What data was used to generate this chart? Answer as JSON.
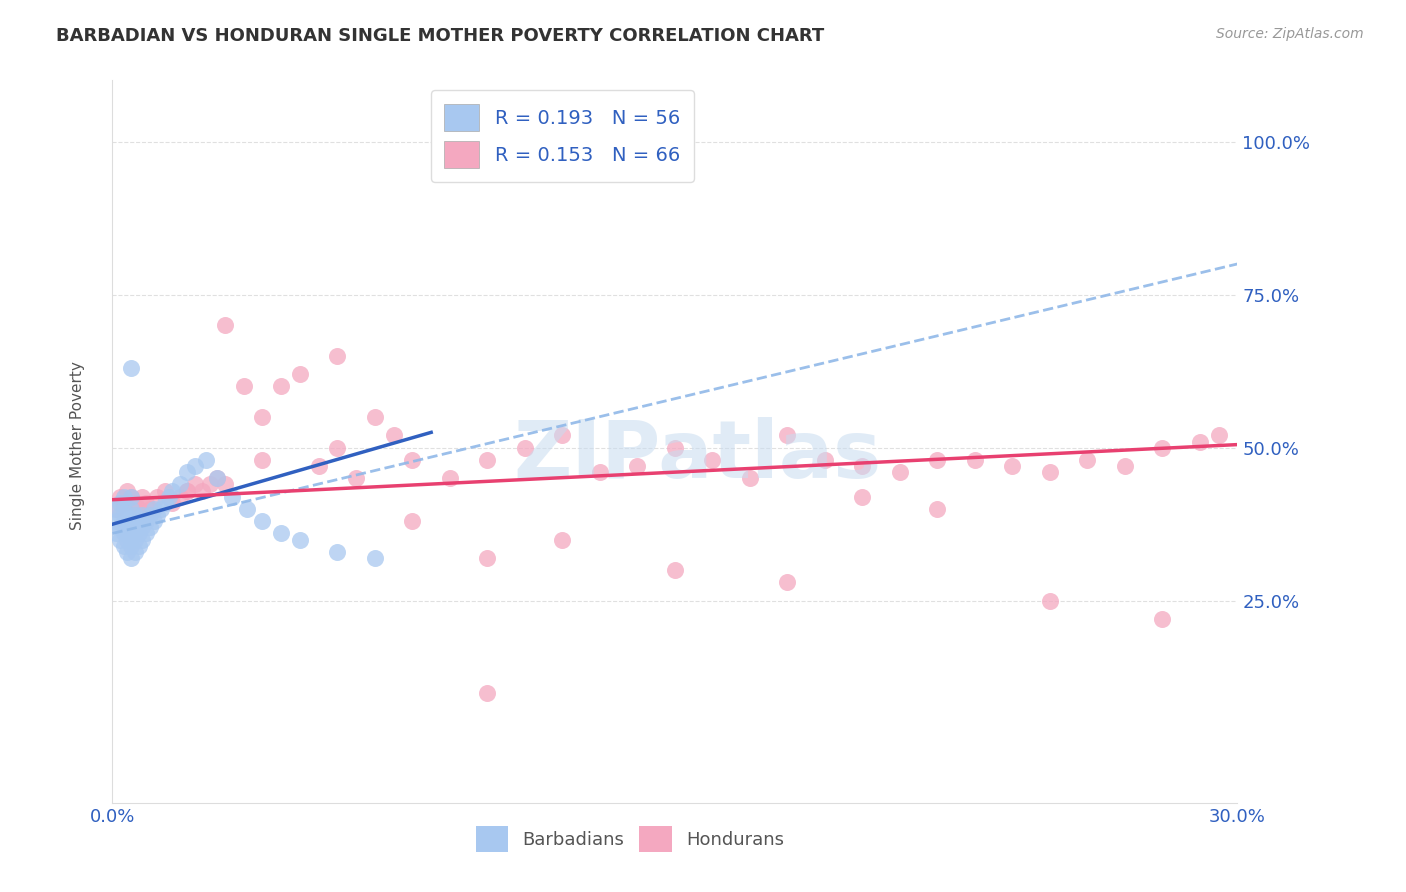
{
  "title": "BARBADIAN VS HONDURAN SINGLE MOTHER POVERTY CORRELATION CHART",
  "source_text": "Source: ZipAtlas.com",
  "ylabel": "Single Mother Poverty",
  "xlim": [
    0.0,
    0.3
  ],
  "ylim": [
    -0.08,
    1.1
  ],
  "ytick_positions": [
    0.25,
    0.5,
    0.75,
    1.0
  ],
  "ytick_labels": [
    "25.0%",
    "50.0%",
    "75.0%",
    "100.0%"
  ],
  "xtick_positions": [
    0.0,
    0.06,
    0.12,
    0.18,
    0.24,
    0.3
  ],
  "xtick_labels": [
    "0.0%",
    "",
    "",
    "",
    "",
    "30.0%"
  ],
  "R_barbadian": 0.193,
  "N_barbadian": 56,
  "R_honduran": 0.153,
  "N_honduran": 66,
  "barbadian_color": "#A8C8F0",
  "honduran_color": "#F4A8C0",
  "barbadian_line_color": "#3060C0",
  "honduran_line_color": "#E84070",
  "dashed_line_color": "#90B8E8",
  "background_color": "#FFFFFF",
  "grid_color": "#CCCCCC",
  "title_color": "#333333",
  "source_color": "#999999",
  "legend_text_color": "#3060C0",
  "axis_tick_color": "#3060C0",
  "watermark_color": "#C8DCF0",
  "ylabel_color": "#555555",
  "legend_N_color": "#3060C0",
  "barb_x": [
    0.001,
    0.001,
    0.001,
    0.002,
    0.002,
    0.002,
    0.002,
    0.003,
    0.003,
    0.003,
    0.003,
    0.003,
    0.004,
    0.004,
    0.004,
    0.004,
    0.005,
    0.005,
    0.005,
    0.005,
    0.005,
    0.005,
    0.006,
    0.006,
    0.006,
    0.006,
    0.007,
    0.007,
    0.007,
    0.008,
    0.008,
    0.008,
    0.009,
    0.009,
    0.01,
    0.01,
    0.011,
    0.011,
    0.012,
    0.013,
    0.014,
    0.015,
    0.016,
    0.018,
    0.02,
    0.022,
    0.025,
    0.028,
    0.032,
    0.036,
    0.04,
    0.045,
    0.05,
    0.06,
    0.07,
    0.005
  ],
  "barb_y": [
    0.36,
    0.38,
    0.4,
    0.35,
    0.37,
    0.39,
    0.41,
    0.34,
    0.36,
    0.38,
    0.4,
    0.42,
    0.33,
    0.35,
    0.37,
    0.39,
    0.32,
    0.34,
    0.36,
    0.38,
    0.4,
    0.42,
    0.33,
    0.35,
    0.37,
    0.39,
    0.34,
    0.36,
    0.38,
    0.35,
    0.37,
    0.39,
    0.36,
    0.38,
    0.37,
    0.39,
    0.38,
    0.4,
    0.39,
    0.4,
    0.41,
    0.42,
    0.43,
    0.44,
    0.46,
    0.47,
    0.48,
    0.45,
    0.42,
    0.4,
    0.38,
    0.36,
    0.35,
    0.33,
    0.32,
    0.63
  ],
  "hond_x": [
    0.001,
    0.002,
    0.003,
    0.004,
    0.005,
    0.006,
    0.007,
    0.008,
    0.009,
    0.01,
    0.012,
    0.014,
    0.016,
    0.018,
    0.02,
    0.022,
    0.024,
    0.026,
    0.028,
    0.03,
    0.035,
    0.04,
    0.045,
    0.05,
    0.055,
    0.06,
    0.065,
    0.07,
    0.075,
    0.08,
    0.09,
    0.1,
    0.11,
    0.12,
    0.13,
    0.14,
    0.15,
    0.16,
    0.17,
    0.18,
    0.19,
    0.2,
    0.21,
    0.22,
    0.23,
    0.24,
    0.25,
    0.26,
    0.27,
    0.28,
    0.29,
    0.295,
    0.03,
    0.06,
    0.02,
    0.04,
    0.08,
    0.1,
    0.12,
    0.15,
    0.18,
    0.25,
    0.2,
    0.28,
    0.1,
    0.22
  ],
  "hond_y": [
    0.4,
    0.42,
    0.41,
    0.43,
    0.42,
    0.41,
    0.4,
    0.42,
    0.41,
    0.4,
    0.42,
    0.43,
    0.41,
    0.42,
    0.43,
    0.44,
    0.43,
    0.44,
    0.45,
    0.44,
    0.6,
    0.55,
    0.6,
    0.62,
    0.47,
    0.5,
    0.45,
    0.55,
    0.52,
    0.48,
    0.45,
    0.48,
    0.5,
    0.52,
    0.46,
    0.47,
    0.5,
    0.48,
    0.45,
    0.52,
    0.48,
    0.47,
    0.46,
    0.48,
    0.48,
    0.47,
    0.46,
    0.48,
    0.47,
    0.5,
    0.51,
    0.52,
    0.7,
    0.65,
    0.43,
    0.48,
    0.38,
    0.32,
    0.35,
    0.3,
    0.28,
    0.25,
    0.42,
    0.22,
    0.1,
    0.4
  ]
}
